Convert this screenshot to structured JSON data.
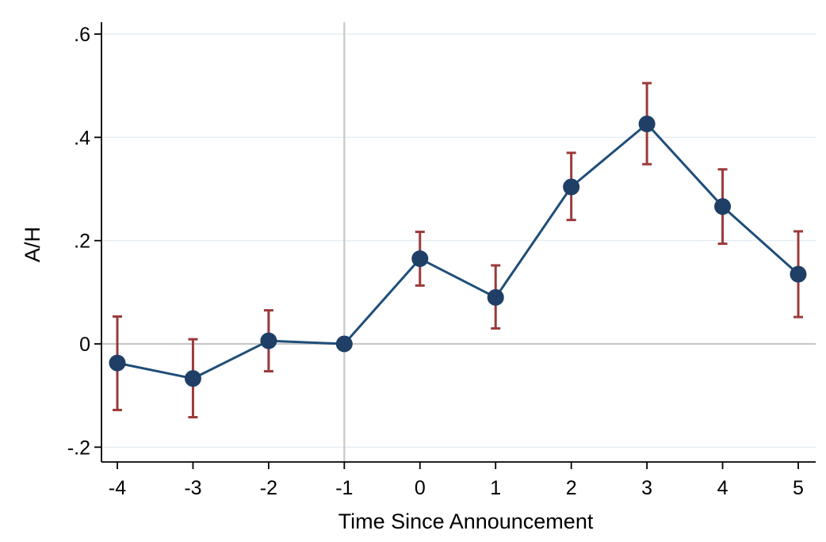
{
  "chart_data": {
    "type": "line",
    "title": "",
    "xlabel": "Time Since Announcement",
    "ylabel": "A/H",
    "x": [
      -4,
      -3,
      -2,
      -1,
      0,
      1,
      2,
      3,
      4,
      5
    ],
    "x_tick_labels": [
      "-4",
      "-3",
      "-2",
      "-1",
      "0",
      "1",
      "2",
      "3",
      "4",
      "5"
    ],
    "y_ticks": [
      -0.2,
      0,
      0.2,
      0.4,
      0.6
    ],
    "y_tick_labels": [
      "-.2",
      "0",
      ".2",
      ".4",
      ".6"
    ],
    "xlim": [
      -4.2,
      5.2
    ],
    "ylim": [
      -0.22,
      0.6
    ],
    "series": [
      {
        "values": [
          -0.037,
          -0.067,
          0.006,
          0.0,
          0.165,
          0.09,
          0.304,
          0.426,
          0.266,
          0.135
        ],
        "ci_lower": [
          -0.128,
          -0.142,
          -0.053,
          0.0,
          0.113,
          0.03,
          0.24,
          0.348,
          0.194,
          0.052
        ],
        "ci_upper": [
          0.053,
          0.009,
          0.065,
          0.0,
          0.217,
          0.152,
          0.37,
          0.505,
          0.338,
          0.218
        ]
      }
    ],
    "reference_lines": {
      "x": -1,
      "y": 0
    },
    "grid": true,
    "legend": "none",
    "colors": {
      "line": "#1f4e79",
      "marker": "#1f3f66",
      "error_bar": "#9b3a3a",
      "gridline": "#e6eef3",
      "reference_line": "#c8c8c8",
      "axis": "#000000"
    }
  }
}
